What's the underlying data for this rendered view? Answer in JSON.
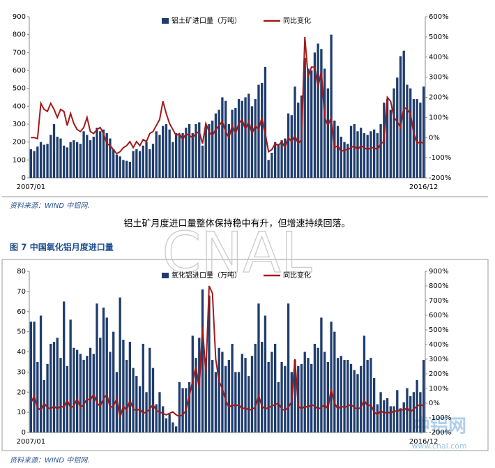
{
  "source_1": "资料来源：WIND 中铝网.",
  "paragraph": "铝土矿月度进口量整体保持稳中有升，但增速持续回落。",
  "figure_caption": "图 7 中国氧化铝月度进口量",
  "source_2": "资料来源：WIND 中铝网.",
  "watermark_1": "CNAL",
  "watermark_2": "中铝网",
  "watermark_3": "www.cnal.com",
  "chart_data": [
    {
      "type": "combo",
      "categories": [
        "2007/01",
        null,
        null,
        null,
        null,
        null,
        null,
        null,
        null,
        null,
        null,
        null,
        null,
        null,
        null,
        null,
        null,
        null,
        null,
        null,
        null,
        null,
        null,
        null,
        null,
        null,
        null,
        null,
        null,
        null,
        null,
        null,
        null,
        null,
        null,
        null,
        null,
        null,
        null,
        null,
        null,
        null,
        null,
        null,
        null,
        null,
        null,
        null,
        null,
        null,
        null,
        null,
        null,
        null,
        null,
        null,
        null,
        null,
        null,
        null,
        null,
        null,
        null,
        null,
        null,
        null,
        null,
        null,
        null,
        null,
        null,
        null,
        null,
        null,
        null,
        null,
        null,
        null,
        null,
        null,
        null,
        null,
        null,
        null,
        null,
        null,
        null,
        null,
        null,
        null,
        null,
        null,
        null,
        null,
        null,
        null,
        null,
        null,
        null,
        null,
        null,
        null,
        null,
        null,
        null,
        null,
        null,
        null,
        null,
        null,
        null,
        null,
        null,
        null,
        null,
        null,
        null,
        null,
        null,
        "2016/12"
      ],
      "series": [
        {
          "name": "铝土矿进口量（万吨）",
          "color": "#1f3d6e",
          "values": [
            160,
            150,
            175,
            200,
            185,
            190,
            240,
            300,
            230,
            220,
            180,
            170,
            200,
            210,
            200,
            190,
            260,
            240,
            210,
            230,
            280,
            260,
            270,
            250,
            220,
            160,
            130,
            120,
            100,
            95,
            90,
            150,
            160,
            150,
            180,
            200,
            160,
            190,
            260,
            240,
            290,
            300,
            270,
            200,
            250,
            240,
            250,
            280,
            300,
            250,
            300,
            310,
            180,
            290,
            300,
            320,
            360,
            380,
            450,
            430,
            300,
            380,
            390,
            440,
            430,
            450,
            470,
            400,
            440,
            520,
            530,
            620,
            100,
            140,
            200,
            190,
            210,
            220,
            360,
            350,
            510,
            420,
            460,
            670,
            610,
            600,
            700,
            750,
            720,
            610,
            500,
            800,
            320,
            290,
            230,
            200,
            190,
            290,
            300,
            260,
            280,
            250,
            240,
            260,
            270,
            250,
            300,
            420,
            440,
            380,
            500,
            560,
            680,
            710,
            520,
            500,
            440,
            440,
            420,
            510
          ]
        },
        {
          "name": "同比变化",
          "color": "#a31a1a",
          "axis": "y2",
          "values": [
            0,
            0,
            -5,
            170,
            140,
            130,
            170,
            140,
            100,
            140,
            130,
            60,
            120,
            70,
            40,
            30,
            50,
            100,
            30,
            20,
            40,
            50,
            20,
            -30,
            -40,
            -60,
            -80,
            -70,
            -50,
            -40,
            -20,
            -50,
            -20,
            -40,
            -10,
            -20,
            20,
            30,
            60,
            90,
            180,
            120,
            70,
            40,
            10,
            20,
            -10,
            20,
            10,
            0,
            20,
            30,
            -30,
            70,
            30,
            10,
            40,
            60,
            80,
            30,
            0,
            60,
            20,
            70,
            90,
            40,
            80,
            20,
            60,
            40,
            100,
            20,
            -70,
            -60,
            -30,
            -40,
            -20,
            -50,
            0,
            -20,
            10,
            -30,
            -10,
            500,
            300,
            350,
            350,
            250,
            330,
            100,
            60,
            100,
            -50,
            -40,
            -70,
            -60,
            -60,
            -50,
            -40,
            -60,
            -40,
            -50,
            -60,
            -50,
            -50,
            -60,
            -30,
            -20,
            200,
            180,
            100,
            80,
            50,
            150,
            140,
            120,
            20,
            -30,
            -20,
            -30
          ]
        }
      ],
      "ylim": [
        0,
        900
      ],
      "yticks": [
        0,
        100,
        200,
        300,
        400,
        500,
        600,
        700,
        800,
        900
      ],
      "y2lim": [
        -200,
        600
      ],
      "y2ticks": [
        {
          "value": -200,
          "label": "-200%"
        },
        {
          "value": -100,
          "label": "-100%"
        },
        {
          "value": 0,
          "label": "0%"
        },
        {
          "value": 100,
          "label": "100%"
        },
        {
          "value": 200,
          "label": "200%"
        },
        {
          "value": 300,
          "label": "300%"
        },
        {
          "value": 400,
          "label": "400%"
        },
        {
          "value": 500,
          "label": "500%"
        },
        {
          "value": 600,
          "label": "600%"
        }
      ]
    },
    {
      "type": "combo",
      "categories": [
        "2007/01",
        null,
        null,
        null,
        null,
        null,
        null,
        null,
        null,
        null,
        null,
        null,
        null,
        null,
        null,
        null,
        null,
        null,
        null,
        null,
        null,
        null,
        null,
        null,
        null,
        null,
        null,
        null,
        null,
        null,
        null,
        null,
        null,
        null,
        null,
        null,
        null,
        null,
        null,
        null,
        null,
        null,
        null,
        null,
        null,
        null,
        null,
        null,
        null,
        null,
        null,
        null,
        null,
        null,
        null,
        null,
        null,
        null,
        null,
        null,
        null,
        null,
        null,
        null,
        null,
        null,
        null,
        null,
        null,
        null,
        null,
        null,
        null,
        null,
        null,
        null,
        null,
        null,
        null,
        null,
        null,
        null,
        null,
        null,
        null,
        null,
        null,
        null,
        null,
        null,
        null,
        null,
        null,
        null,
        null,
        null,
        null,
        null,
        null,
        null,
        null,
        null,
        null,
        null,
        null,
        null,
        null,
        null,
        null,
        null,
        null,
        null,
        null,
        null,
        null,
        null,
        null,
        null,
        null,
        "2016/12"
      ],
      "series": [
        {
          "name": "氧化铝进口量（万吨）",
          "color": "#1f3d6e",
          "values": [
            55,
            55,
            35,
            58,
            26,
            34,
            44,
            45,
            47,
            37,
            65,
            33,
            56,
            42,
            41,
            39,
            36,
            38,
            42,
            39,
            64,
            47,
            62,
            57,
            40,
            50,
            30,
            67,
            46,
            36,
            45,
            32,
            28,
            23,
            44,
            20,
            42,
            32,
            14,
            20,
            13,
            7,
            9,
            5,
            3,
            25,
            22,
            22,
            25,
            48,
            37,
            47,
            71,
            37,
            68,
            36,
            30,
            42,
            40,
            33,
            36,
            44,
            30,
            30,
            39,
            37,
            28,
            38,
            44,
            64,
            45,
            58,
            35,
            40,
            44,
            25,
            35,
            33,
            64,
            30,
            36,
            33,
            34,
            40,
            37,
            34,
            44,
            42,
            57,
            40,
            35,
            55,
            50,
            37,
            38,
            36,
            36,
            34,
            31,
            29,
            33,
            48,
            36,
            37,
            27,
            14,
            20,
            16,
            17,
            13,
            13,
            21,
            12,
            15,
            22,
            18,
            20,
            26,
            20,
            36
          ]
        },
        {
          "name": "同比变化",
          "color": "#a31a1a",
          "axis": "y2",
          "values": [
            0,
            50,
            -30,
            -50,
            0,
            -30,
            -40,
            -20,
            -40,
            -20,
            -30,
            20,
            -30,
            -20,
            30,
            -30,
            -10,
            30,
            20,
            60,
            0,
            -20,
            30,
            60,
            -30,
            -20,
            30,
            -100,
            -20,
            -50,
            20,
            -40,
            -50,
            -40,
            -70,
            -60,
            -40,
            -10,
            -50,
            -60,
            -70,
            -80,
            -70,
            -60,
            -80,
            -90,
            -80,
            -50,
            50,
            150,
            250,
            100,
            520,
            200,
            800,
            750,
            300,
            150,
            100,
            20,
            -30,
            -10,
            -20,
            -10,
            -40,
            -30,
            -50,
            -40,
            -30,
            50,
            -20,
            -40,
            -30,
            -20,
            -10,
            0,
            -40,
            -50,
            -30,
            10,
            300,
            -20,
            -40,
            -20,
            -30,
            -10,
            -20,
            -40,
            -30,
            -10,
            -40,
            100,
            0,
            -40,
            -20,
            -30,
            -20,
            -10,
            -30,
            -40,
            -30,
            20,
            -20,
            -10,
            -60,
            -80,
            -50,
            -70,
            -60,
            -70,
            -50,
            -60,
            -40,
            -50,
            -30,
            -60,
            -40,
            -20,
            -10,
            -20
          ]
        }
      ],
      "ylim": [
        0,
        80
      ],
      "yticks": [
        0,
        10,
        20,
        30,
        40,
        50,
        60,
        70,
        80
      ],
      "y2lim": [
        -200,
        900
      ],
      "y2ticks": [
        {
          "value": -200,
          "label": "-200%"
        },
        {
          "value": -100,
          "label": "-100%"
        },
        {
          "value": 0,
          "label": "0%"
        },
        {
          "value": 100,
          "label": "100%"
        },
        {
          "value": 200,
          "label": "200%"
        },
        {
          "value": 300,
          "label": "300%"
        },
        {
          "value": 400,
          "label": "400%"
        },
        {
          "value": 500,
          "label": "500%"
        },
        {
          "value": 600,
          "label": "600%"
        },
        {
          "value": 700,
          "label": "700%"
        },
        {
          "value": 800,
          "label": "800%"
        },
        {
          "value": 900,
          "label": "900%"
        }
      ]
    }
  ]
}
